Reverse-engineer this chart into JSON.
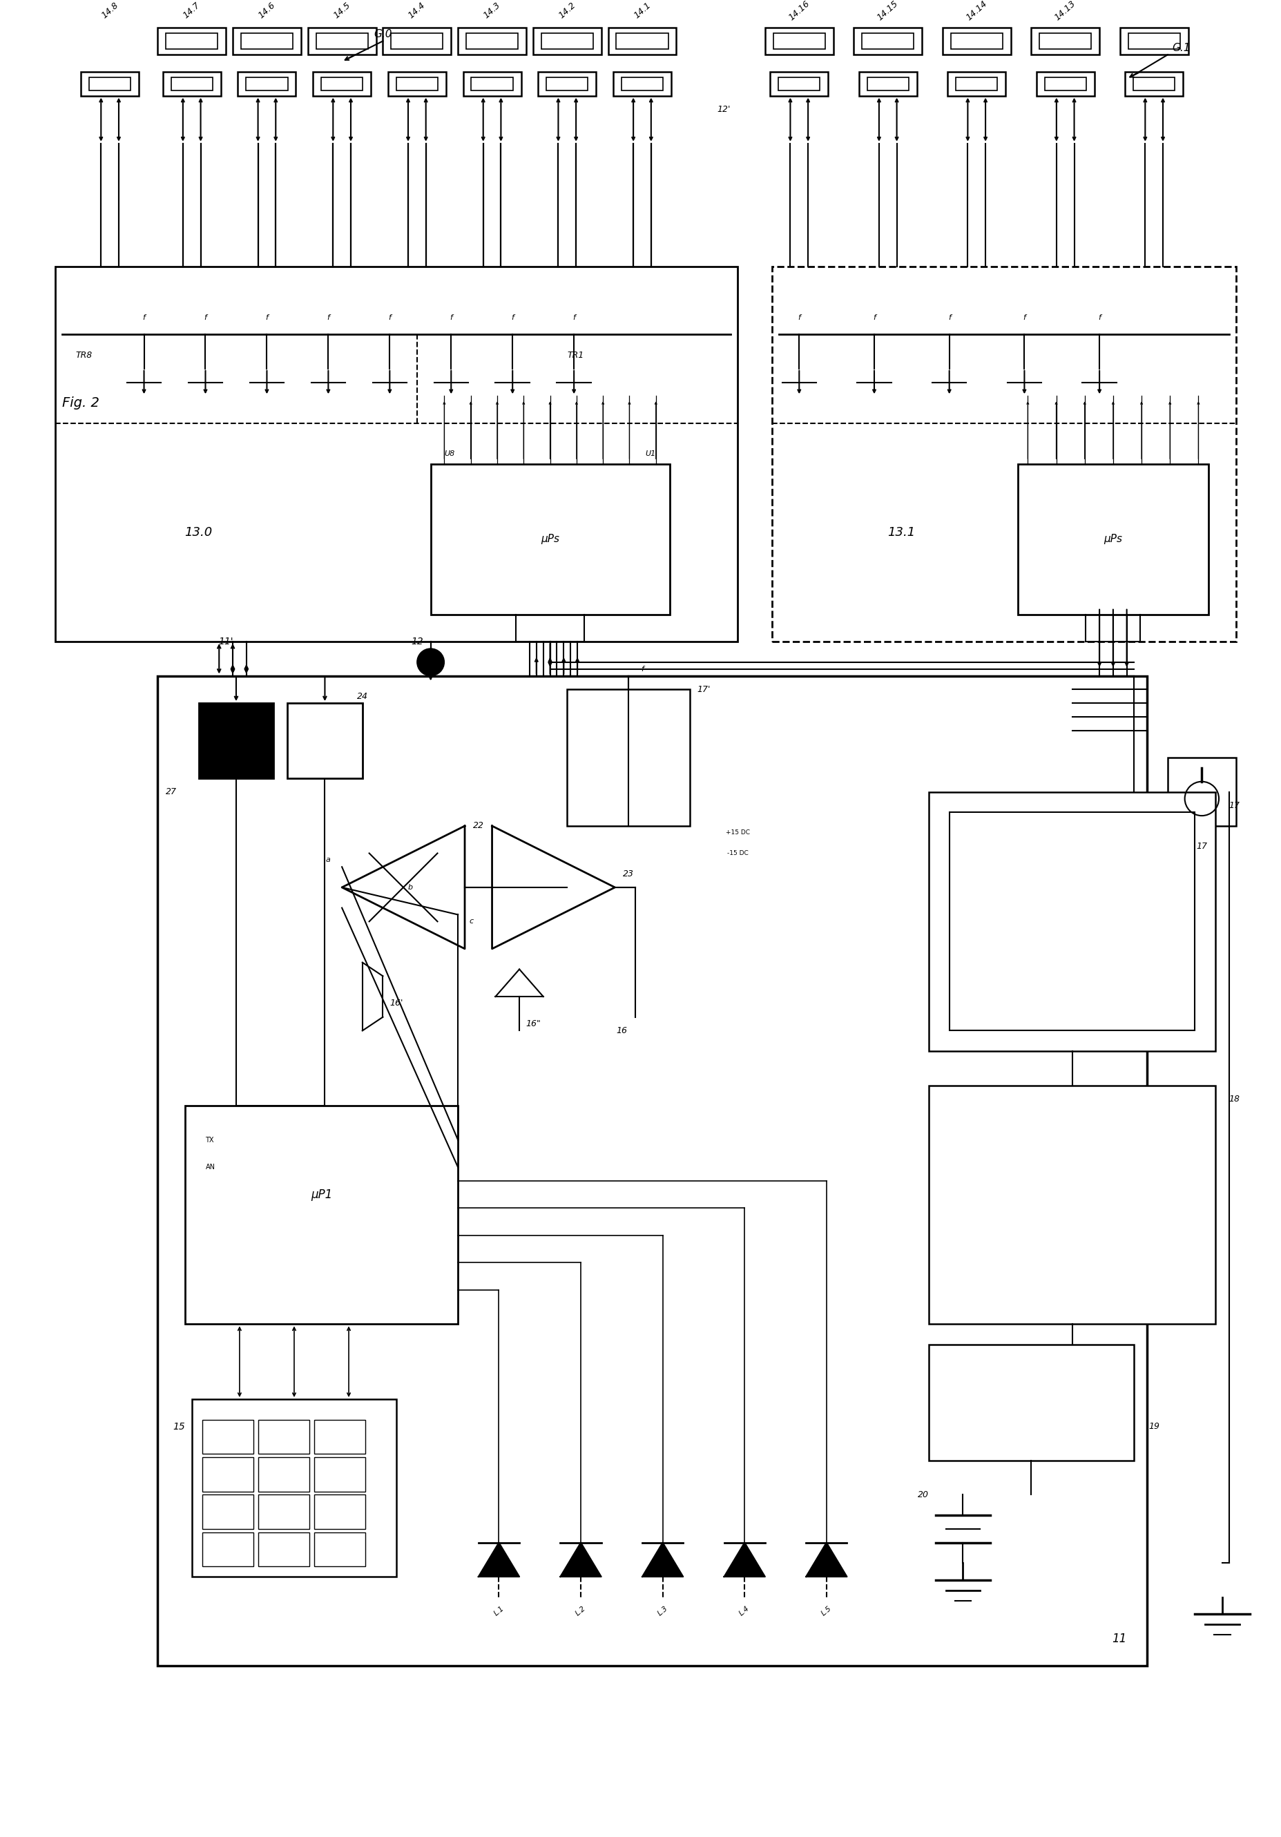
{
  "bg": "#ffffff",
  "fig_w": 18.56,
  "fig_h": 26.6,
  "labels": {
    "fig2": "Fig. 2",
    "G0": "G.0",
    "G1": "G.1",
    "130": "13.0",
    "131": "13.1",
    "TR8": "TR8",
    "TR1": "TR1",
    "U8": "U8",
    "U1": "U1",
    "uPs": "μPs",
    "uP1": "μP1",
    "11": "11",
    "11p": "11'",
    "12": "12",
    "12p": "12'",
    "148": "14.8",
    "147": "14.7",
    "146": "14.6",
    "145": "14.5",
    "144": "14.4",
    "143": "14.3",
    "142": "14.2",
    "141": "14.1",
    "1416": "14.16",
    "1415": "14.15",
    "1414": "14.14",
    "1413": "14.13",
    "lbl15": "15",
    "lbl16": "16",
    "lbl16p": "16'",
    "lbl16pp": "16\"",
    "lbl17": "17",
    "lbl17p": "17'",
    "lbl18": "18",
    "lbl19": "19",
    "lbl20": "20",
    "lbl22": "22",
    "lbl23": "23",
    "lbl24": "24",
    "lbl27": "27",
    "L1": "L.1",
    "L2": "L.2",
    "L3": "L.3",
    "L4": "L.4",
    "L5": "L.5",
    "TX": "TX",
    "AN": "AN",
    "a": "a",
    "b": "b",
    "c": "c",
    "f": "f",
    "dc_p": "+15 DC",
    "dc_n": "-15 DC"
  }
}
